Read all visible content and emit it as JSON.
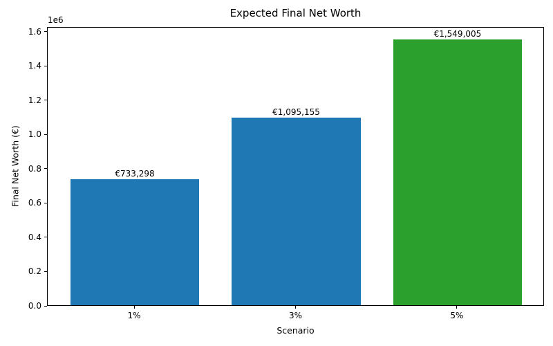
{
  "chart_data": {
    "type": "bar",
    "title": "Expected Final Net Worth",
    "xlabel": "Scenario",
    "ylabel": "Final Net Worth (€)",
    "categories": [
      "1%",
      "3%",
      "5%"
    ],
    "values": [
      733298,
      1095155,
      1549005
    ],
    "bar_labels": [
      "€733,298",
      "€1,095,155",
      "€1,549,005"
    ],
    "bar_colors": [
      "#1f77b4",
      "#1f77b4",
      "#2ca02c"
    ],
    "ylim": [
      0,
      1626455
    ],
    "yticks": [
      0,
      200000,
      400000,
      600000,
      800000,
      1000000,
      1200000,
      1400000,
      1600000
    ],
    "ytick_labels": [
      "0.0",
      "0.2",
      "0.4",
      "0.6",
      "0.8",
      "1.0",
      "1.2",
      "1.4",
      "1.6"
    ],
    "y_offset_text": "1e6",
    "grid": false,
    "legend": null,
    "bar_width_fraction": 0.8
  }
}
